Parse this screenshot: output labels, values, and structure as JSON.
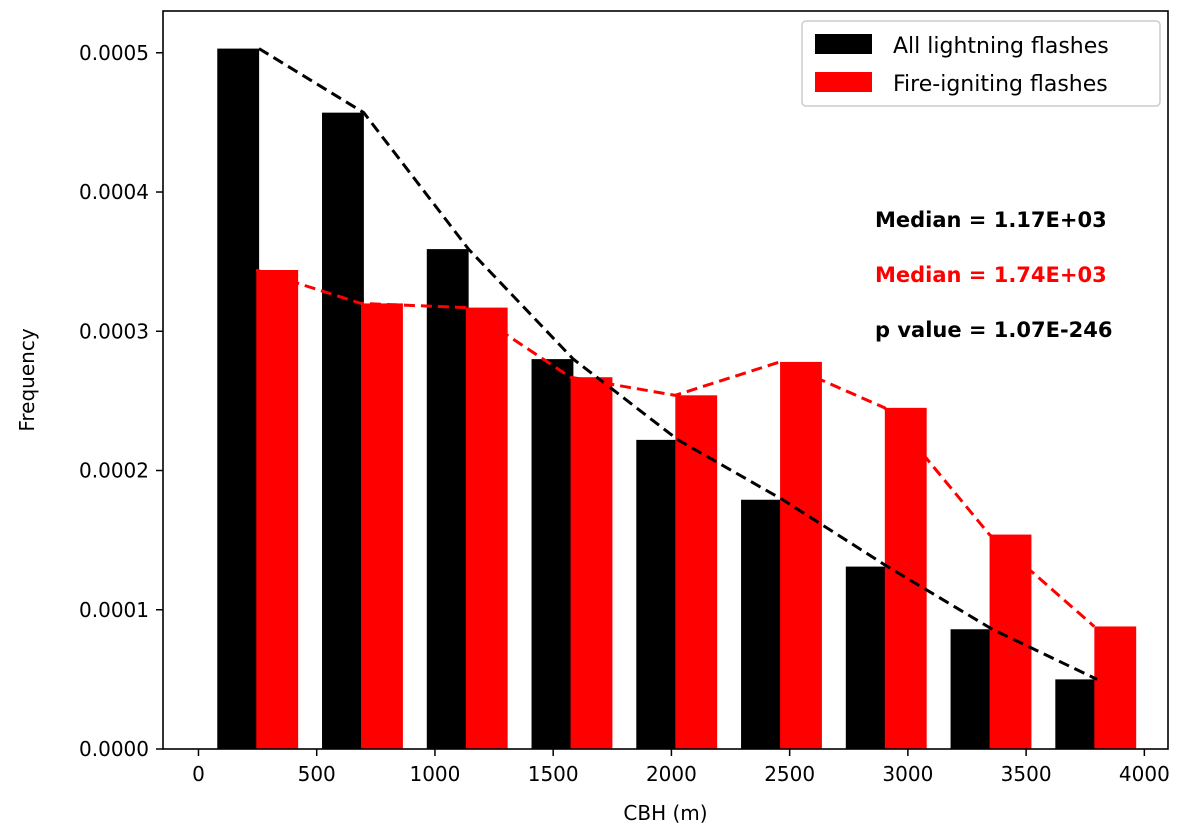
{
  "chart_data": {
    "type": "bar",
    "xlabel": "CBH (m)",
    "ylabel": "Frequency",
    "xlim": [
      -150,
      4100
    ],
    "ylim": [
      0,
      0.00053
    ],
    "x_ticks": [
      0,
      500,
      1000,
      1500,
      2000,
      2500,
      3000,
      3500,
      4000
    ],
    "x_tick_labels": [
      "0",
      "500",
      "1000",
      "1500",
      "2000",
      "2500",
      "3000",
      "3500",
      "4000"
    ],
    "y_ticks": [
      0,
      0.0001,
      0.0002,
      0.0003,
      0.0004,
      0.0005
    ],
    "y_tick_labels": [
      "0.0000",
      "0.0001",
      "0.0002",
      "0.0003",
      "0.0004",
      "0.0005"
    ],
    "grid": false,
    "legend_position": "top-right",
    "series": [
      {
        "name": "All lightning flashes",
        "color": "#000000",
        "x": [
          168,
          611,
          1054,
          1497,
          1940,
          2383,
          2826,
          3269,
          3712
        ],
        "values": [
          0.000503,
          0.000457,
          0.000359,
          0.00028,
          0.000222,
          0.000179,
          0.000131,
          8.6e-05,
          5e-05
        ],
        "line_x": [
          256,
          699,
          1142,
          1585,
          2028,
          2471,
          2914,
          3357,
          3800
        ],
        "line_values": [
          0.000503,
          0.000457,
          0.000359,
          0.00028,
          0.000222,
          0.000179,
          0.000131,
          8.6e-05,
          5e-05
        ]
      },
      {
        "name": "Fire-igniting flashes",
        "color": "#ff0000",
        "x": [
          333,
          776,
          1219,
          1662,
          2105,
          2548,
          2991,
          3434,
          3877
        ],
        "values": [
          0.000344,
          0.00032,
          0.000317,
          0.000267,
          0.000254,
          0.000278,
          0.000245,
          0.000154,
          8.8e-05
        ],
        "line_x": [
          244,
          687,
          1130,
          1573,
          2016,
          2459,
          2902,
          3345,
          3788
        ],
        "line_values": [
          0.000344,
          0.00032,
          0.000317,
          0.000267,
          0.000254,
          0.000278,
          0.000245,
          0.000154,
          8.8e-05
        ]
      }
    ],
    "bar_width": 177,
    "annotations": [
      {
        "text": "Median = 1.17E+03",
        "color": "#000000"
      },
      {
        "text": "Median = 1.74E+03",
        "color": "#ff0000"
      },
      {
        "text": "p value = 1.07E-246",
        "color": "#000000"
      }
    ]
  }
}
